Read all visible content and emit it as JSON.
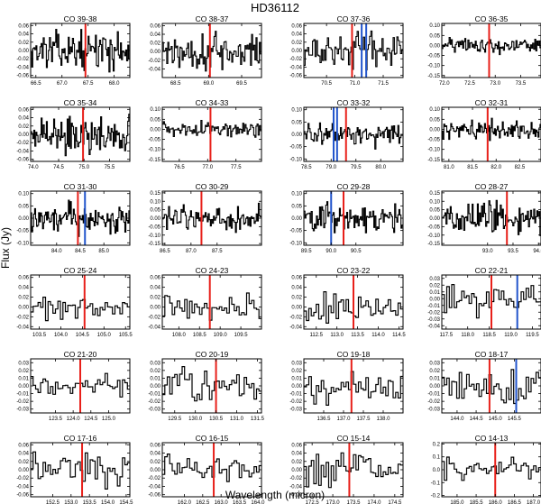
{
  "figure": {
    "title": "HD36112",
    "xlabel": "Wavelength (micron)",
    "ylabel": "Flux (Jy)"
  },
  "chart_data": [
    {
      "type": "line",
      "title": "CO 39-38",
      "xlim": [
        66.4,
        68.3
      ],
      "ylim": [
        -0.065,
        0.065
      ],
      "xticks": [
        66.5,
        67.0,
        67.5,
        68.0
      ],
      "yticks": [
        -0.06,
        -0.04,
        -0.02,
        0.0,
        0.02,
        0.04,
        0.06
      ],
      "marker_lines": [
        {
          "x": 67.45,
          "color": "#e8201a"
        }
      ],
      "n_points": 95,
      "y_range": [
        -0.055,
        0.055
      ]
    },
    {
      "type": "line",
      "title": "CO 38-37",
      "xlim": [
        68.3,
        69.8
      ],
      "ylim": [
        -0.06,
        0.065
      ],
      "xticks": [
        68.5,
        69.0,
        69.5
      ],
      "yticks": [
        -0.04,
        -0.02,
        0.0,
        0.02,
        0.04,
        0.06
      ],
      "marker_lines": [
        {
          "x": 69.02,
          "color": "#e8201a"
        }
      ],
      "n_points": 90,
      "y_range": [
        -0.045,
        0.06
      ]
    },
    {
      "type": "line",
      "title": "CO 37-36",
      "xlim": [
        70.1,
        71.85
      ],
      "ylim": [
        -0.065,
        0.065
      ],
      "xticks": [
        70.5,
        71.0,
        71.5
      ],
      "yticks": [
        -0.06,
        -0.04,
        -0.02,
        0.0,
        0.02,
        0.04,
        0.06
      ],
      "marker_lines": [
        {
          "x": 70.95,
          "color": "#e8201a"
        },
        {
          "x": 71.12,
          "color": "#2255cc"
        },
        {
          "x": 71.2,
          "color": "#2255cc"
        }
      ],
      "n_points": 80,
      "y_range": [
        -0.05,
        0.05
      ]
    },
    {
      "type": "line",
      "title": "CO 36-35",
      "xlim": [
        71.95,
        73.9
      ],
      "ylim": [
        -0.16,
        0.11
      ],
      "xticks": [
        72.0,
        72.5,
        73.0,
        73.5
      ],
      "yticks": [
        -0.15,
        -0.1,
        -0.05,
        0.0,
        0.05,
        0.1
      ],
      "marker_lines": [
        {
          "x": 72.88,
          "color": "#e8201a"
        }
      ],
      "n_points": 95,
      "y_range": [
        -0.05,
        0.05
      ]
    },
    {
      "type": "line",
      "title": "CO 35-34",
      "xlim": [
        73.95,
        75.9
      ],
      "ylim": [
        -0.065,
        0.065
      ],
      "xticks": [
        74.0,
        74.5,
        75.0,
        75.5
      ],
      "yticks": [
        -0.06,
        -0.04,
        -0.02,
        0.0,
        0.02,
        0.04,
        0.06
      ],
      "marker_lines": [
        {
          "x": 74.98,
          "color": "#e8201a"
        }
      ],
      "n_points": 95,
      "y_range": [
        -0.055,
        0.06
      ]
    },
    {
      "type": "line",
      "title": "CO 34-33",
      "xlim": [
        76.2,
        77.95
      ],
      "ylim": [
        -0.16,
        0.11
      ],
      "xticks": [
        76.5,
        77.0,
        77.5
      ],
      "yticks": [
        -0.15,
        -0.1,
        -0.05,
        0.0,
        0.05,
        0.1
      ],
      "marker_lines": [
        {
          "x": 77.05,
          "color": "#e8201a"
        }
      ],
      "n_points": 90,
      "y_range": [
        -0.05,
        0.05
      ]
    },
    {
      "type": "line",
      "title": "CO 33-32",
      "xlim": [
        78.45,
        80.45
      ],
      "ylim": [
        -0.11,
        0.11
      ],
      "xticks": [
        78.5,
        79.0,
        79.5,
        80.0
      ],
      "yticks": [
        -0.1,
        -0.05,
        0.0,
        0.05,
        0.1
      ],
      "marker_lines": [
        {
          "x": 79.3,
          "color": "#e8201a"
        },
        {
          "x": 79.05,
          "color": "#2255cc"
        },
        {
          "x": 79.12,
          "color": "#2255cc"
        }
      ],
      "n_points": 95,
      "y_range": [
        -0.06,
        0.06
      ]
    },
    {
      "type": "line",
      "title": "CO 32-31",
      "xlim": [
        80.85,
        82.95
      ],
      "ylim": [
        -0.16,
        0.11
      ],
      "xticks": [
        81.0,
        81.5,
        82.0,
        82.5
      ],
      "yticks": [
        -0.15,
        -0.1,
        -0.05,
        0.0,
        0.05,
        0.1
      ],
      "marker_lines": [
        {
          "x": 81.82,
          "color": "#e8201a"
        }
      ],
      "n_points": 100,
      "y_range": [
        -0.07,
        0.07
      ]
    },
    {
      "type": "line",
      "title": "CO 31-30",
      "xlim": [
        83.45,
        85.55
      ],
      "ylim": [
        -0.11,
        0.11
      ],
      "xticks": [
        84.0,
        84.5,
        85.0
      ],
      "yticks": [
        -0.1,
        -0.05,
        0.0,
        0.05,
        0.1
      ],
      "marker_lines": [
        {
          "x": 84.45,
          "color": "#e8201a"
        },
        {
          "x": 84.6,
          "color": "#2255cc"
        }
      ],
      "n_points": 100,
      "y_range": [
        -0.08,
        0.08
      ]
    },
    {
      "type": "line",
      "title": "CO 30-29",
      "xlim": [
        86.45,
        88.35
      ],
      "ylim": [
        -0.16,
        0.16
      ],
      "xticks": [
        86.5,
        87.0,
        87.5
      ],
      "yticks": [
        -0.15,
        -0.1,
        -0.05,
        0.0,
        0.05,
        0.1,
        0.15
      ],
      "marker_lines": [
        {
          "x": 87.2,
          "color": "#e8201a"
        }
      ],
      "n_points": 95,
      "y_range": [
        -0.09,
        0.09
      ]
    },
    {
      "type": "line",
      "title": "CO 29-28",
      "xlim": [
        89.45,
        91.45
      ],
      "ylim": [
        -0.11,
        0.11
      ],
      "xticks": [
        89.5,
        90.0,
        90.5
      ],
      "yticks": [
        -0.1,
        -0.05,
        0.0,
        0.05,
        0.1
      ],
      "marker_lines": [
        {
          "x": 90.25,
          "color": "#e8201a"
        },
        {
          "x": 90.0,
          "color": "#2255cc"
        }
      ],
      "n_points": 95,
      "y_range": [
        -0.07,
        0.08
      ]
    },
    {
      "type": "line",
      "title": "CO 28-27",
      "xlim": [
        92.1,
        94.05
      ],
      "ylim": [
        -0.16,
        0.16
      ],
      "xticks": [
        93.0,
        93.5,
        94.0
      ],
      "yticks": [
        -0.15,
        -0.1,
        -0.05,
        0.0,
        0.05,
        0.1,
        0.15
      ],
      "marker_lines": [
        {
          "x": 93.38,
          "color": "#e8201a"
        }
      ],
      "n_points": 95,
      "y_range": [
        -0.12,
        0.13
      ]
    },
    {
      "type": "line",
      "title": "CO 25-24",
      "xlim": [
        103.3,
        105.6
      ],
      "ylim": [
        -0.045,
        0.065
      ],
      "xticks": [
        103.5,
        104.0,
        104.5,
        105.0,
        105.5
      ],
      "yticks": [
        -0.04,
        -0.02,
        0.0,
        0.02,
        0.04,
        0.06
      ],
      "marker_lines": [
        {
          "x": 104.55,
          "color": "#e8201a"
        }
      ],
      "n_points": 40,
      "y_range": [
        -0.035,
        0.035
      ]
    },
    {
      "type": "line",
      "title": "CO 24-23",
      "xlim": [
        107.6,
        110.0
      ],
      "ylim": [
        -0.045,
        0.065
      ],
      "xticks": [
        108.0,
        108.5,
        109.0,
        109.5
      ],
      "yticks": [
        -0.04,
        -0.02,
        0.0,
        0.02,
        0.04,
        0.06
      ],
      "marker_lines": [
        {
          "x": 108.75,
          "color": "#e8201a"
        }
      ],
      "n_points": 40,
      "y_range": [
        -0.03,
        0.03
      ]
    },
    {
      "type": "line",
      "title": "CO 23-22",
      "xlim": [
        112.2,
        114.6
      ],
      "ylim": [
        -0.045,
        0.065
      ],
      "xticks": [
        112.5,
        113.0,
        113.5,
        114.0,
        114.5
      ],
      "yticks": [
        -0.04,
        -0.02,
        0.0,
        0.02,
        0.04,
        0.06
      ],
      "marker_lines": [
        {
          "x": 113.4,
          "color": "#e8201a"
        }
      ],
      "n_points": 40,
      "y_range": [
        -0.035,
        0.04
      ]
    },
    {
      "type": "line",
      "title": "CO 22-21",
      "xlim": [
        117.4,
        119.7
      ],
      "ylim": [
        -0.045,
        0.035
      ],
      "xticks": [
        117.5,
        118.0,
        118.5,
        119.0,
        119.5
      ],
      "yticks": [
        -0.04,
        -0.03,
        -0.02,
        -0.01,
        0.0,
        0.01,
        0.02,
        0.03
      ],
      "marker_lines": [
        {
          "x": 118.55,
          "color": "#e8201a"
        },
        {
          "x": 119.15,
          "color": "#2255cc"
        }
      ],
      "n_points": 40,
      "y_range": [
        -0.03,
        0.025
      ]
    },
    {
      "type": "line",
      "title": "CO 21-20",
      "xlim": [
        122.8,
        125.6
      ],
      "ylim": [
        -0.035,
        0.035
      ],
      "xticks": [
        123.5,
        124.0,
        124.5,
        125.0
      ],
      "yticks": [
        -0.03,
        -0.02,
        -0.01,
        0.0,
        0.01,
        0.02,
        0.03
      ],
      "marker_lines": [
        {
          "x": 124.2,
          "color": "#e8201a"
        }
      ],
      "n_points": 40,
      "y_range": [
        -0.02,
        0.02
      ]
    },
    {
      "type": "line",
      "title": "CO 20-19",
      "xlim": [
        129.2,
        131.6
      ],
      "ylim": [
        -0.035,
        0.035
      ],
      "xticks": [
        129.5,
        130.0,
        130.5,
        131.0,
        131.5
      ],
      "yticks": [
        -0.03,
        -0.02,
        -0.01,
        0.0,
        0.01,
        0.02,
        0.03
      ],
      "marker_lines": [
        {
          "x": 130.5,
          "color": "#e8201a"
        }
      ],
      "n_points": 40,
      "y_range": [
        -0.025,
        0.025
      ]
    },
    {
      "type": "line",
      "title": "CO 19-18",
      "xlim": [
        136.0,
        138.5
      ],
      "ylim": [
        -0.035,
        0.035
      ],
      "xticks": [
        136.5,
        137.0,
        137.5,
        138.0
      ],
      "yticks": [
        -0.03,
        -0.02,
        -0.01,
        0.0,
        0.01,
        0.02,
        0.03
      ],
      "marker_lines": [
        {
          "x": 137.2,
          "color": "#e8201a"
        }
      ],
      "n_points": 40,
      "y_range": [
        -0.025,
        0.03
      ]
    },
    {
      "type": "line",
      "title": "CO 18-17",
      "xlim": [
        143.6,
        146.2
      ],
      "ylim": [
        -0.035,
        0.035
      ],
      "xticks": [
        144.0,
        144.5,
        145.0,
        145.5
      ],
      "yticks": [
        -0.03,
        -0.02,
        -0.01,
        0.0,
        0.01,
        0.02,
        0.03
      ],
      "marker_lines": [
        {
          "x": 144.85,
          "color": "#e8201a"
        },
        {
          "x": 145.55,
          "color": "#2255cc"
        }
      ],
      "n_points": 40,
      "y_range": [
        -0.03,
        0.03
      ]
    },
    {
      "type": "line",
      "title": "CO 17-16",
      "xlim": [
        151.9,
        154.6
      ],
      "ylim": [
        -0.065,
        0.065
      ],
      "xticks": [
        152.5,
        153.0,
        153.5,
        154.0,
        154.5
      ],
      "yticks": [
        -0.06,
        -0.04,
        -0.02,
        0.0,
        0.02,
        0.04,
        0.06
      ],
      "marker_lines": [
        {
          "x": 153.3,
          "color": "#e8201a"
        }
      ],
      "n_points": 40,
      "y_range": [
        -0.055,
        0.05
      ]
    },
    {
      "type": "line",
      "title": "CO 16-15",
      "xlim": [
        161.4,
        164.1
      ],
      "ylim": [
        -0.065,
        0.065
      ],
      "xticks": [
        162.0,
        162.5,
        163.0,
        163.5,
        164.0
      ],
      "yticks": [
        -0.06,
        -0.04,
        -0.02,
        0.0,
        0.02,
        0.04,
        0.06
      ],
      "marker_lines": [
        {
          "x": 162.8,
          "color": "#e8201a"
        }
      ],
      "n_points": 40,
      "y_range": [
        -0.04,
        0.04
      ]
    },
    {
      "type": "line",
      "title": "CO 15-14",
      "xlim": [
        172.3,
        174.7
      ],
      "ylim": [
        -0.065,
        0.065
      ],
      "xticks": [
        172.5,
        173.0,
        173.5,
        174.0,
        174.5
      ],
      "yticks": [
        -0.06,
        -0.04,
        -0.02,
        0.0,
        0.02,
        0.04,
        0.06
      ],
      "marker_lines": [
        {
          "x": 173.4,
          "color": "#e8201a"
        }
      ],
      "n_points": 40,
      "y_range": [
        -0.06,
        0.05
      ]
    },
    {
      "type": "line",
      "title": "CO 14-13",
      "xlim": [
        184.6,
        187.2
      ],
      "ylim": [
        -0.21,
        0.21
      ],
      "xticks": [
        185.0,
        185.5,
        186.0,
        186.5,
        187.0
      ],
      "yticks": [
        -0.2,
        -0.1,
        0.0,
        0.1,
        0.2
      ],
      "marker_lines": [
        {
          "x": 186.0,
          "color": "#e8201a"
        }
      ],
      "n_points": 40,
      "y_range": [
        -0.12,
        0.12
      ]
    }
  ]
}
